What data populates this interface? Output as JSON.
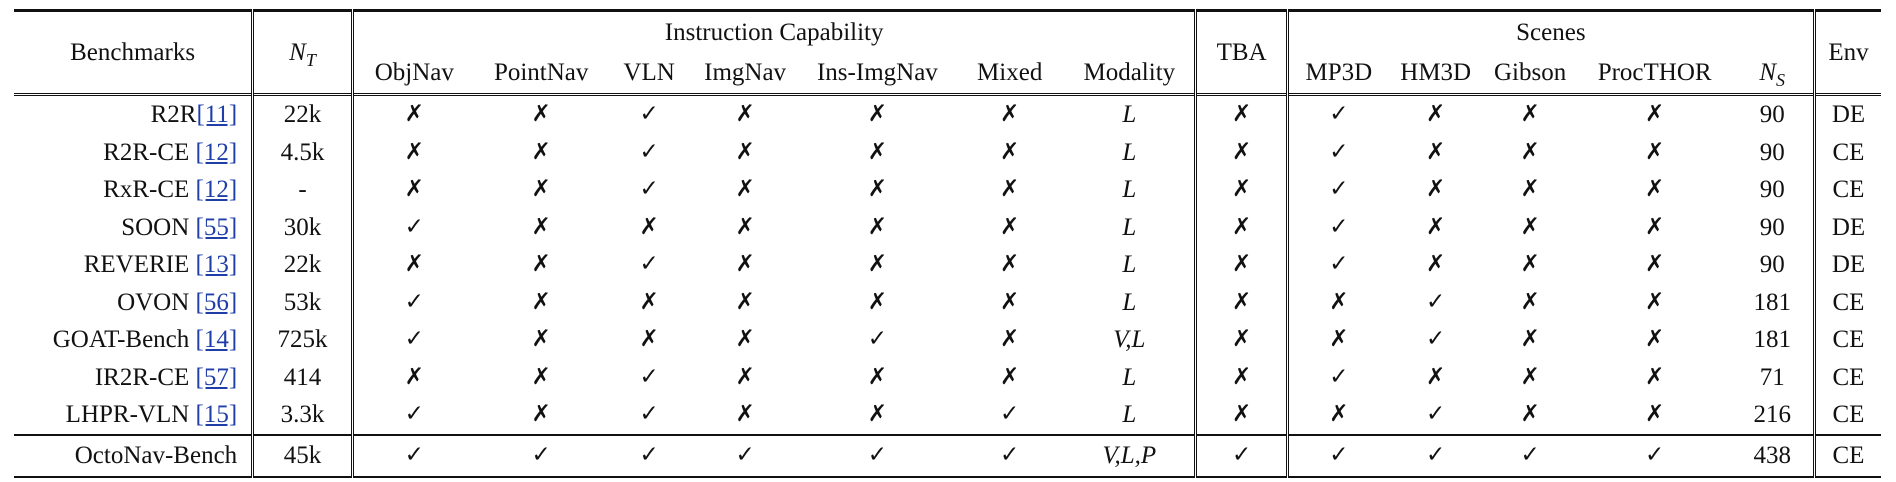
{
  "columns": {
    "benchmarks": "Benchmarks",
    "nt_base": "N",
    "nt_sub": "T",
    "instruction_group": "Instruction Capability",
    "objnav": "ObjNav",
    "pointnav": "PointNav",
    "vln": "VLN",
    "imgnav": "ImgNav",
    "ins_imgnav": "Ins-ImgNav",
    "mixed": "Mixed",
    "modality": "Modality",
    "tba": "TBA",
    "scenes_group": "Scenes",
    "mp3d": "MP3D",
    "hm3d": "HM3D",
    "gibson": "Gibson",
    "procthor": "ProcTHOR",
    "ns_base": "N",
    "ns_sub": "S",
    "env": "Env"
  },
  "symbols": {
    "yes": "✓",
    "no": "✗"
  },
  "rows": [
    {
      "name": "R2R",
      "cite": "[11]",
      "nt": "22k",
      "objnav": "✗",
      "pointnav": "✗",
      "vln": "✓",
      "imgnav": "✗",
      "ins_imgnav": "✗",
      "mixed": "✗",
      "modality": "L",
      "tba": "✗",
      "mp3d": "✓",
      "hm3d": "✗",
      "gibson": "✗",
      "procthor": "✗",
      "ns": "90",
      "env": "DE"
    },
    {
      "name": "R2R-CE ",
      "cite": "[12]",
      "nt": "4.5k",
      "objnav": "✗",
      "pointnav": "✗",
      "vln": "✓",
      "imgnav": "✗",
      "ins_imgnav": "✗",
      "mixed": "✗",
      "modality": "L",
      "tba": "✗",
      "mp3d": "✓",
      "hm3d": "✗",
      "gibson": "✗",
      "procthor": "✗",
      "ns": "90",
      "env": "CE"
    },
    {
      "name": "RxR-CE ",
      "cite": "[12]",
      "nt": "-",
      "objnav": "✗",
      "pointnav": "✗",
      "vln": "✓",
      "imgnav": "✗",
      "ins_imgnav": "✗",
      "mixed": "✗",
      "modality": "L",
      "tba": "✗",
      "mp3d": "✓",
      "hm3d": "✗",
      "gibson": "✗",
      "procthor": "✗",
      "ns": "90",
      "env": "CE"
    },
    {
      "name": "SOON ",
      "cite": "[55]",
      "nt": "30k",
      "objnav": "✓",
      "pointnav": "✗",
      "vln": "✗",
      "imgnav": "✗",
      "ins_imgnav": "✗",
      "mixed": "✗",
      "modality": "L",
      "tba": "✗",
      "mp3d": "✓",
      "hm3d": "✗",
      "gibson": "✗",
      "procthor": "✗",
      "ns": "90",
      "env": "DE"
    },
    {
      "name": "REVERIE ",
      "cite": "[13]",
      "nt": "22k",
      "objnav": "✗",
      "pointnav": "✗",
      "vln": "✓",
      "imgnav": "✗",
      "ins_imgnav": "✗",
      "mixed": "✗",
      "modality": "L",
      "tba": "✗",
      "mp3d": "✓",
      "hm3d": "✗",
      "gibson": "✗",
      "procthor": "✗",
      "ns": "90",
      "env": "DE"
    },
    {
      "name": "OVON ",
      "cite": "[56]",
      "nt": "53k",
      "objnav": "✓",
      "pointnav": "✗",
      "vln": "✗",
      "imgnav": "✗",
      "ins_imgnav": "✗",
      "mixed": "✗",
      "modality": "L",
      "tba": "✗",
      "mp3d": "✗",
      "hm3d": "✓",
      "gibson": "✗",
      "procthor": "✗",
      "ns": "181",
      "env": "CE"
    },
    {
      "name": "GOAT-Bench ",
      "cite": "[14]",
      "nt": "725k",
      "objnav": "✓",
      "pointnav": "✗",
      "vln": "✗",
      "imgnav": "✗",
      "ins_imgnav": "✓",
      "mixed": "✗",
      "modality": "V,L",
      "tba": "✗",
      "mp3d": "✗",
      "hm3d": "✓",
      "gibson": "✗",
      "procthor": "✗",
      "ns": "181",
      "env": "CE"
    },
    {
      "name": "IR2R-CE ",
      "cite": "[57]",
      "nt": "414",
      "objnav": "✗",
      "pointnav": "✗",
      "vln": "✓",
      "imgnav": "✗",
      "ins_imgnav": "✗",
      "mixed": "✗",
      "modality": "L",
      "tba": "✗",
      "mp3d": "✓",
      "hm3d": "✗",
      "gibson": "✗",
      "procthor": "✗",
      "ns": "71",
      "env": "CE"
    },
    {
      "name": "LHPR-VLN ",
      "cite": "[15]",
      "nt": "3.3k",
      "objnav": "✓",
      "pointnav": "✗",
      "vln": "✓",
      "imgnav": "✗",
      "ins_imgnav": "✗",
      "mixed": "✓",
      "modality": "L",
      "tba": "✗",
      "mp3d": "✗",
      "hm3d": "✓",
      "gibson": "✗",
      "procthor": "✗",
      "ns": "216",
      "env": "CE"
    },
    {
      "name": "OctoNav-Bench",
      "cite": "",
      "nt": "45k",
      "objnav": "✓",
      "pointnav": "✓",
      "vln": "✓",
      "imgnav": "✓",
      "ins_imgnav": "✓",
      "mixed": "✓",
      "modality": "V,L,P",
      "tba": "✓",
      "mp3d": "✓",
      "hm3d": "✓",
      "gibson": "✓",
      "procthor": "✓",
      "ns": "438",
      "env": "CE"
    }
  ]
}
